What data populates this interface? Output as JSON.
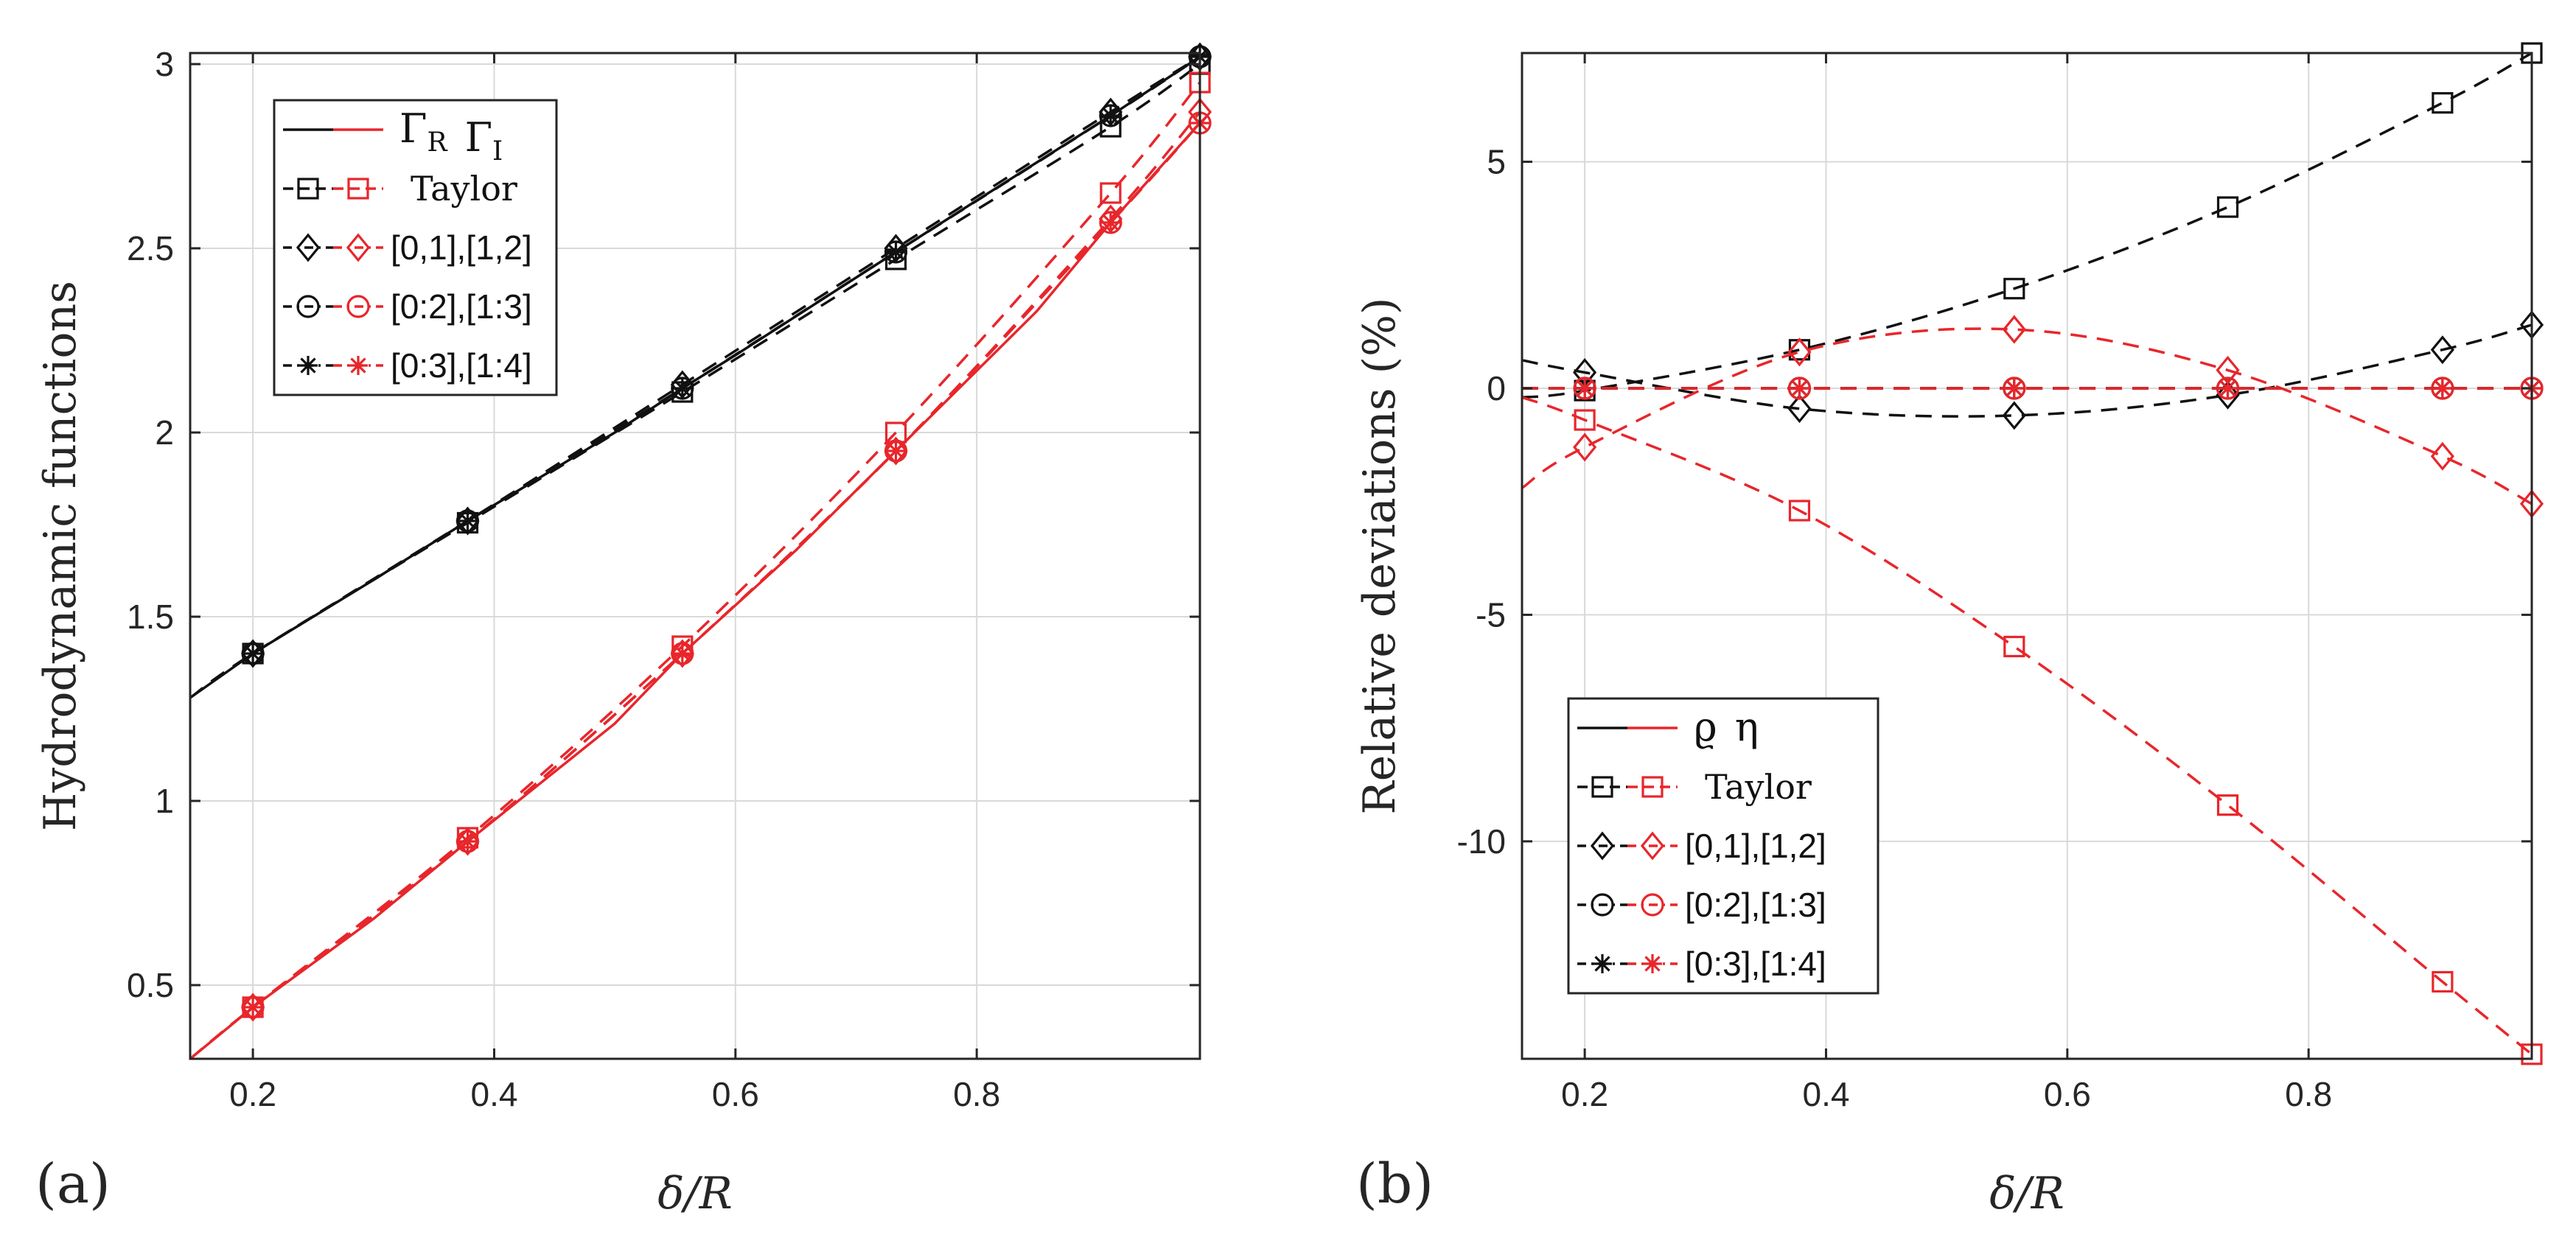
{
  "colors": {
    "black": "#111111",
    "red": "#e8262b",
    "grid": "#d9d9d9",
    "axis": "#262626"
  },
  "chart_data": [
    {
      "type": "line",
      "panel_label": "(a)",
      "xlabel": "δ/R",
      "ylabel": "Hydrodynamic functions",
      "xlim": [
        0.148,
        0.985
      ],
      "ylim": [
        0.3,
        3.03
      ],
      "xticks": [
        0.2,
        0.4,
        0.6,
        0.8
      ],
      "xtick_labels": [
        "0.2",
        "0.4",
        "0.6",
        "0.8"
      ],
      "yticks": [
        0.5,
        1,
        1.5,
        2,
        2.5,
        3
      ],
      "ytick_labels": [
        "0.5",
        "1",
        "1.5",
        "2",
        "2.5",
        "3"
      ],
      "grid": true,
      "legend_position": "top-left",
      "legend": [
        {
          "label": "",
          "symbol_pair": [
            "Γ",
            "Γ"
          ],
          "subscripts": [
            "R",
            "I"
          ],
          "marker": "none",
          "style": "solid"
        },
        {
          "label": "Taylor",
          "marker": "square",
          "style": "dashed"
        },
        {
          "label": "[0,1],[1,2]",
          "marker": "diamond",
          "style": "dashdot"
        },
        {
          "label": "[0:2],[1:3]",
          "marker": "circle",
          "style": "dashdot"
        },
        {
          "label": "[0:3],[1:4]",
          "marker": "star",
          "style": "dashdot"
        }
      ],
      "marker_x": [
        0.2,
        0.378,
        0.556,
        0.733,
        0.911,
        0.985
      ],
      "series": [
        {
          "name": "Γ_R exact",
          "color": "black",
          "style": "solid",
          "x": [
            0.148,
            0.2,
            0.3,
            0.378,
            0.5,
            0.556,
            0.6,
            0.733,
            0.8,
            0.911,
            0.985
          ],
          "y": [
            1.28,
            1.4,
            1.6,
            1.76,
            2.0,
            2.12,
            2.21,
            2.49,
            2.63,
            2.86,
            3.02
          ]
        },
        {
          "name": "Γ_R Taylor",
          "color": "black",
          "style": "dashed",
          "marker": "square",
          "x": [
            0.148,
            0.2,
            0.378,
            0.556,
            0.733,
            0.911,
            0.985
          ],
          "y": [
            1.28,
            1.4,
            1.755,
            2.11,
            2.47,
            2.83,
            3.0
          ]
        },
        {
          "name": "Γ_R [0,1]",
          "color": "black",
          "style": "dashdot",
          "marker": "diamond",
          "x": [
            0.2,
            0.378,
            0.556,
            0.733,
            0.911,
            0.985
          ],
          "y": [
            1.4,
            1.76,
            2.13,
            2.5,
            2.87,
            3.02
          ]
        },
        {
          "name": "Γ_R [0:2]",
          "color": "black",
          "style": "dashdot",
          "marker": "circle",
          "x": [
            0.2,
            0.378,
            0.556,
            0.733,
            0.911,
            0.985
          ],
          "y": [
            1.4,
            1.76,
            2.12,
            2.49,
            2.86,
            3.02
          ]
        },
        {
          "name": "Γ_R [0:3]",
          "color": "black",
          "style": "dashdot",
          "marker": "star",
          "x": [
            0.2,
            0.378,
            0.556,
            0.733,
            0.911,
            0.985
          ],
          "y": [
            1.4,
            1.76,
            2.12,
            2.49,
            2.86,
            3.02
          ]
        },
        {
          "name": "Γ_I exact",
          "color": "red",
          "style": "solid",
          "x": [
            0.148,
            0.2,
            0.3,
            0.378,
            0.5,
            0.556,
            0.65,
            0.733,
            0.85,
            0.911,
            0.985
          ],
          "y": [
            0.3,
            0.44,
            0.68,
            0.89,
            1.21,
            1.4,
            1.68,
            1.95,
            2.33,
            2.57,
            2.84
          ]
        },
        {
          "name": "Γ_I Taylor",
          "color": "red",
          "style": "dashed",
          "marker": "square",
          "x": [
            0.148,
            0.2,
            0.378,
            0.556,
            0.733,
            0.911,
            0.985
          ],
          "y": [
            0.3,
            0.44,
            0.9,
            1.42,
            2.0,
            2.65,
            2.95
          ]
        },
        {
          "name": "Γ_I [1,2]",
          "color": "red",
          "style": "dashdot",
          "marker": "diamond",
          "x": [
            0.2,
            0.378,
            0.556,
            0.733,
            0.911,
            0.985
          ],
          "y": [
            0.44,
            0.89,
            1.4,
            1.95,
            2.58,
            2.87
          ]
        },
        {
          "name": "Γ_I [1:3]",
          "color": "red",
          "style": "dashdot",
          "marker": "circle",
          "x": [
            0.2,
            0.378,
            0.556,
            0.733,
            0.911,
            0.985
          ],
          "y": [
            0.44,
            0.89,
            1.4,
            1.95,
            2.57,
            2.84
          ]
        },
        {
          "name": "Γ_I [1:4]",
          "color": "red",
          "style": "dashdot",
          "marker": "star",
          "x": [
            0.2,
            0.378,
            0.556,
            0.733,
            0.911,
            0.985
          ],
          "y": [
            0.44,
            0.89,
            1.4,
            1.95,
            2.57,
            2.84
          ]
        }
      ]
    },
    {
      "type": "line",
      "panel_label": "(b)",
      "xlabel": "δ/R",
      "ylabel": "Relative deviations (%)",
      "xlim": [
        0.148,
        0.985
      ],
      "ylim": [
        -14.8,
        7.4
      ],
      "xticks": [
        0.2,
        0.4,
        0.6,
        0.8
      ],
      "xtick_labels": [
        "0.2",
        "0.4",
        "0.6",
        "0.8"
      ],
      "yticks": [
        -10,
        -5,
        0,
        5
      ],
      "ytick_labels": [
        "-10",
        "-5",
        "0",
        "5"
      ],
      "grid": true,
      "legend_position": "bottom-left",
      "legend": [
        {
          "label": "",
          "symbol_pair": [
            "ϱ",
            "η"
          ],
          "subscripts": [
            "",
            ""
          ],
          "marker": "none",
          "style": "solid"
        },
        {
          "label": "Taylor",
          "marker": "square",
          "style": "dashed"
        },
        {
          "label": "[0,1],[1,2]",
          "marker": "diamond",
          "style": "dashdot"
        },
        {
          "label": "[0:2],[1:3]",
          "marker": "circle",
          "style": "dashdot"
        },
        {
          "label": "[0:3],[1:4]",
          "marker": "star",
          "style": "dashdot"
        }
      ],
      "series": [
        {
          "name": "ϱ Taylor",
          "color": "black",
          "style": "dashed",
          "marker": "square",
          "x": [
            0.148,
            0.2,
            0.378,
            0.556,
            0.733,
            0.911,
            0.985
          ],
          "y": [
            -0.2,
            -0.05,
            0.85,
            2.2,
            4.0,
            6.3,
            7.4
          ]
        },
        {
          "name": "η Taylor",
          "color": "red",
          "style": "dashed",
          "marker": "square",
          "x": [
            0.148,
            0.2,
            0.378,
            0.556,
            0.733,
            0.911,
            0.985
          ],
          "y": [
            -0.2,
            -0.7,
            -2.7,
            -5.7,
            -9.2,
            -13.1,
            -14.7
          ]
        },
        {
          "name": "ϱ [0,1]",
          "color": "black",
          "style": "dashed",
          "marker": "diamond",
          "x": [
            0.148,
            0.2,
            0.378,
            0.556,
            0.733,
            0.911,
            0.985
          ],
          "y": [
            0.62,
            0.35,
            -0.45,
            -0.6,
            -0.15,
            0.85,
            1.4
          ]
        },
        {
          "name": "η [1,2]",
          "color": "red",
          "style": "dashed",
          "marker": "diamond",
          "x": [
            0.148,
            0.2,
            0.378,
            0.556,
            0.733,
            0.911,
            0.985
          ],
          "y": [
            -2.2,
            -1.3,
            0.8,
            1.3,
            0.4,
            -1.5,
            -2.55
          ]
        },
        {
          "name": "ϱ [0:2]",
          "color": "black",
          "style": "dashed",
          "marker": "circle",
          "x": [
            0.148,
            0.2,
            0.378,
            0.556,
            0.733,
            0.911,
            0.985
          ],
          "y": [
            0,
            0,
            0,
            0,
            0,
            0,
            0
          ]
        },
        {
          "name": "η [1:3]",
          "color": "red",
          "style": "dashed",
          "marker": "circle",
          "x": [
            0.148,
            0.2,
            0.378,
            0.556,
            0.733,
            0.911,
            0.985
          ],
          "y": [
            0,
            0,
            0,
            0,
            0,
            0,
            0
          ]
        },
        {
          "name": "ϱ [0:3]",
          "color": "black",
          "style": "dashed",
          "marker": "star",
          "x": [
            0.148,
            0.2,
            0.378,
            0.556,
            0.733,
            0.911,
            0.985
          ],
          "y": [
            0,
            0,
            0,
            0,
            0,
            0,
            0
          ]
        },
        {
          "name": "η [1:4]",
          "color": "red",
          "style": "dashed",
          "marker": "star",
          "x": [
            0.148,
            0.2,
            0.378,
            0.556,
            0.733,
            0.911,
            0.985
          ],
          "y": [
            0,
            0,
            0,
            0,
            0,
            0,
            0
          ]
        }
      ]
    }
  ]
}
